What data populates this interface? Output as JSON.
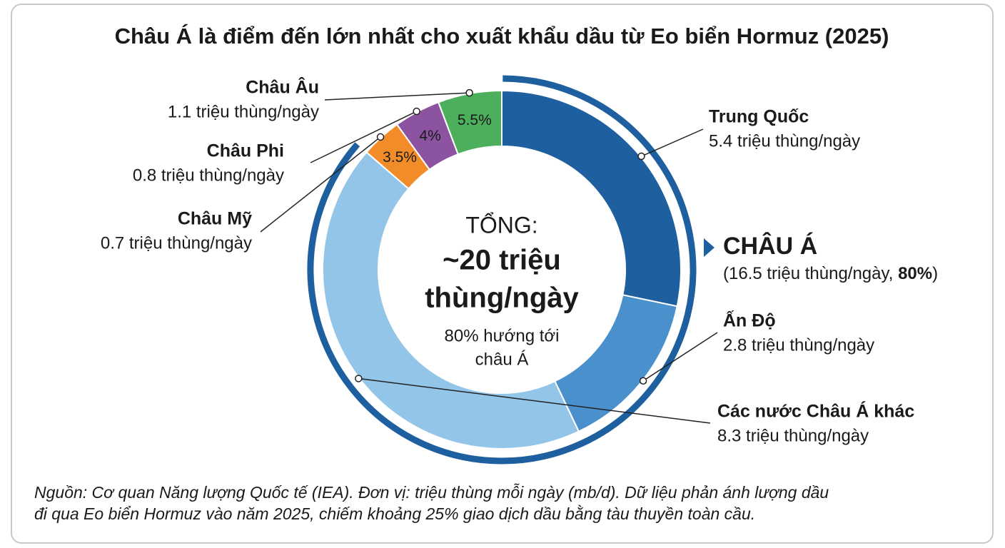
{
  "chart_data": {
    "type": "donut",
    "title": "Châu Á là điểm đến lớn nhất cho xuất khẩu dầu từ Eo biển Hormuz (2025)",
    "categories": [
      "Trung Quốc",
      "Ấn Độ",
      "Các nước Châu Á khác",
      "Châu Mỹ",
      "Châu Phi",
      "Châu Âu"
    ],
    "values": [
      5.4,
      2.8,
      8.3,
      0.7,
      0.8,
      1.1
    ],
    "value_labels": [
      "5.4 triệu thùng/ngày",
      "2.8 triệu thùng/ngày",
      "8.3 triệu thùng/ngày",
      "0.7 triệu thùng/ngày",
      "0.8 triệu thùng/ngày",
      "1.1 triệu thùng/ngày"
    ],
    "share_labels": [
      null,
      null,
      null,
      "3.5%",
      "4%",
      "5.5%"
    ],
    "colors": [
      "#1d5f9f",
      "#4a90cd",
      "#92c5e8",
      "#f28c28",
      "#8c53a0",
      "#4caf5b"
    ],
    "group_label": "CHÂU Á",
    "group_detail": [
      "(16.5 triệu thùng/ngày, ",
      "80%",
      ")"
    ],
    "group_color": "#1d5f9f",
    "center_lines": [
      "TỔNG:",
      "~20 triệu",
      "thùng/ngày",
      "80% hướng tới",
      "châu Á"
    ],
    "footnote": [
      "Nguồn: Cơ quan Năng lượng Quốc tế (IEA). Đơn vị: triệu thùng mỗi ngày (mb/d). Dữ liệu phản ánh lượng dầu",
      "đi qua Eo biển Hormuz vào năm 2025, chiếm khoảng 25% giao dịch dầu bằng tàu thuyền toàn cầu."
    ]
  }
}
